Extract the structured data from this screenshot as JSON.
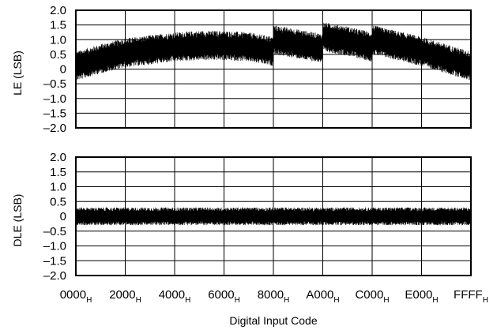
{
  "chart_data": [
    {
      "type": "line",
      "ylabel": "LE (LSB)",
      "ylim": [
        -2.0,
        2.0
      ],
      "yticks": [
        "2.0",
        "1.5",
        "1.0",
        "0.5",
        "0",
        "–0.5",
        "–1.0",
        "–1.5",
        "–2.0"
      ],
      "xlim": [
        0,
        65535
      ],
      "grid": true,
      "series": [
        {
          "color": "#000000",
          "x": [
            0,
            4096,
            8192,
            12288,
            16384,
            20480,
            24576,
            28672,
            32767,
            32768,
            36864,
            40959,
            40960,
            45056,
            49151,
            49152,
            53248,
            57344,
            61440,
            65535
          ],
          "y_center": [
            0.1,
            0.35,
            0.55,
            0.65,
            0.75,
            0.8,
            0.8,
            0.75,
            0.6,
            1.0,
            0.85,
            0.7,
            1.1,
            0.95,
            0.75,
            1.0,
            0.8,
            0.6,
            0.35,
            0.1
          ],
          "noise_amplitude": 0.5
        }
      ]
    },
    {
      "type": "line",
      "ylabel": "DLE (LSB)",
      "ylim": [
        -2.0,
        2.0
      ],
      "yticks": [
        "2.0",
        "1.5",
        "1.0",
        "0.5",
        "0",
        "–0.5",
        "–1.0",
        "–1.5",
        "–2.0"
      ],
      "xlim": [
        0,
        65535
      ],
      "grid": true,
      "series": [
        {
          "color": "#000000",
          "x": [
            0,
            65535
          ],
          "y_center": [
            0.0,
            0.0
          ],
          "noise_amplitude": 0.3
        }
      ]
    }
  ],
  "x_axis": {
    "title": "Digital Input Code",
    "ticks": [
      {
        "value": 0,
        "main": "0000",
        "sub": "H"
      },
      {
        "value": 8192,
        "main": "2000",
        "sub": "H"
      },
      {
        "value": 16384,
        "main": "4000",
        "sub": "H"
      },
      {
        "value": 24576,
        "main": "6000",
        "sub": "H"
      },
      {
        "value": 32768,
        "main": "8000",
        "sub": "H"
      },
      {
        "value": 40960,
        "main": "A000",
        "sub": "H"
      },
      {
        "value": 49152,
        "main": "C000",
        "sub": "H"
      },
      {
        "value": 57344,
        "main": "E000",
        "sub": "H"
      },
      {
        "value": 65535,
        "main": "FFFF",
        "sub": "H"
      }
    ]
  }
}
